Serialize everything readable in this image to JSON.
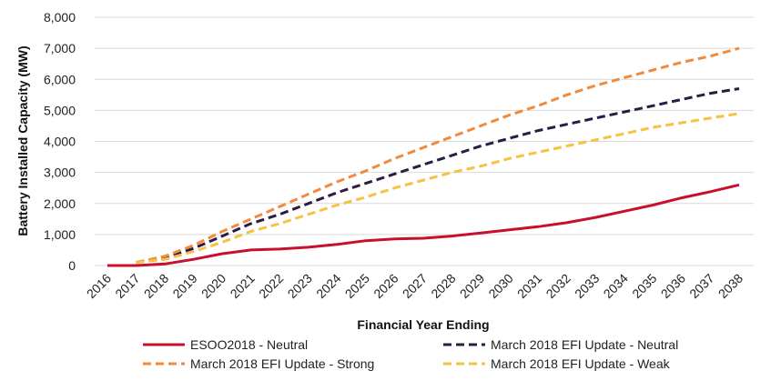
{
  "chart_data": {
    "type": "line",
    "title": "",
    "xlabel": "Financial Year Ending",
    "ylabel": "Battery Installed Capacity (MW)",
    "x": [
      "2016",
      "2017",
      "2018",
      "2019",
      "2020",
      "2021",
      "2022",
      "2023",
      "2024",
      "2025",
      "2026",
      "2027",
      "2028",
      "2029",
      "2030",
      "2031",
      "2032",
      "2033",
      "2034",
      "2035",
      "2036",
      "2037",
      "2038"
    ],
    "ylim": [
      0,
      8000
    ],
    "yticks": [
      "0",
      "1,000",
      "2,000",
      "3,000",
      "4,000",
      "5,000",
      "6,000",
      "7,000",
      "8,000"
    ],
    "grid": "horizontal",
    "legend_position": "bottom",
    "series": [
      {
        "name": "ESOO2018 - Neutral",
        "color": "#c8102e",
        "style": "solid",
        "values": [
          0,
          0,
          50,
          200,
          380,
          500,
          530,
          590,
          680,
          800,
          860,
          880,
          950,
          1050,
          1150,
          1250,
          1380,
          1550,
          1750,
          1950,
          2180,
          2380,
          2600
        ]
      },
      {
        "name": "March 2018 EFI Update - Neutral",
        "color": "#2e1a47",
        "style": "dashed",
        "values": [
          null,
          100,
          250,
          550,
          950,
          1350,
          1650,
          2000,
          2350,
          2650,
          2950,
          3250,
          3550,
          3850,
          4100,
          4350,
          4550,
          4750,
          4950,
          5150,
          5350,
          5550,
          5700
        ]
      },
      {
        "name": "March 2018 EFI Update - Strong",
        "color": "#f28a3c",
        "style": "dashed",
        "values": [
          null,
          100,
          300,
          650,
          1100,
          1500,
          1900,
          2300,
          2700,
          3050,
          3450,
          3800,
          4150,
          4500,
          4850,
          5150,
          5500,
          5800,
          6050,
          6300,
          6550,
          6750,
          7000
        ]
      },
      {
        "name": "March 2018 EFI Update - Weak",
        "color": "#f5c242",
        "style": "dashed",
        "values": [
          null,
          100,
          200,
          450,
          750,
          1100,
          1350,
          1650,
          1950,
          2200,
          2500,
          2750,
          3000,
          3200,
          3450,
          3650,
          3850,
          4050,
          4250,
          4450,
          4600,
          4750,
          4900
        ]
      }
    ]
  }
}
